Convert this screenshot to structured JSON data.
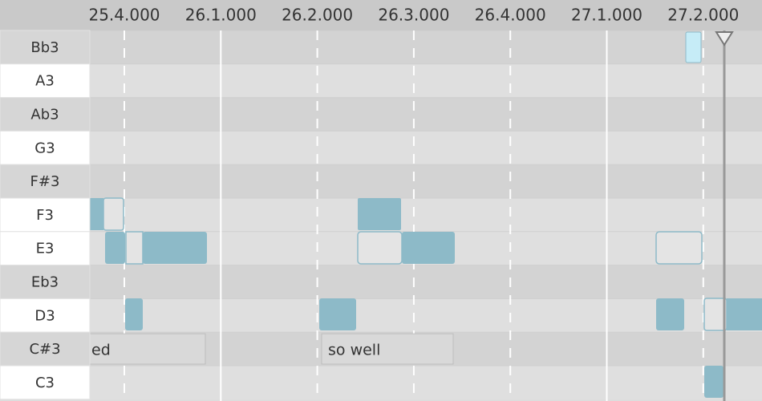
{
  "timeline": {
    "ticks": [
      "25.4.000",
      "26.1.000",
      "26.2.000",
      "26.3.000",
      "26.4.000",
      "27.1.000",
      "27.2.000"
    ]
  },
  "keys": [
    "Bb3",
    "A3",
    "Ab3",
    "G3",
    "F#3",
    "F3",
    "E3",
    "Eb3",
    "D3",
    "C#3",
    "C3"
  ],
  "lyrics": [
    "ed",
    "so well"
  ]
}
